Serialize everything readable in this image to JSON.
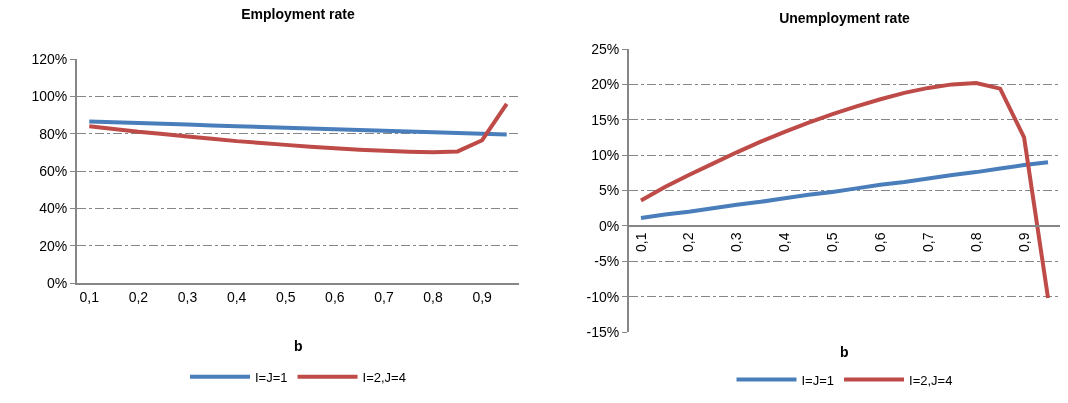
{
  "chart_data": [
    {
      "type": "line",
      "title": "Employment rate",
      "xlabel": "b",
      "categories": [
        "0,1",
        null,
        "0,2",
        null,
        "0,3",
        null,
        "0,4",
        null,
        "0,5",
        null,
        "0,6",
        null,
        "0,7",
        null,
        "0,8",
        null,
        "0,9",
        null
      ],
      "series": [
        {
          "name": "I=J=1",
          "color": "#4a7ebb",
          "values": [
            86.5,
            86.1,
            85.7,
            85.3,
            84.9,
            84.4,
            84.0,
            83.6,
            83.2,
            82.8,
            82.4,
            82.0,
            81.6,
            81.2,
            80.8,
            80.4,
            80.0,
            79.6
          ]
        },
        {
          "name": "I=2,J=4",
          "color": "#be4b48",
          "values": [
            84,
            82.5,
            81,
            79.8,
            78.5,
            77.3,
            76,
            75,
            74,
            73,
            72.2,
            71.4,
            70.8,
            70.3,
            70,
            70.5,
            76.5,
            96
          ]
        }
      ],
      "ylim": [
        0,
        120
      ],
      "yticks": [
        {
          "value": 0,
          "label": "0%"
        },
        {
          "value": 20,
          "label": "20%"
        },
        {
          "value": 40,
          "label": "40%"
        },
        {
          "value": 60,
          "label": "60%"
        },
        {
          "value": 80,
          "label": "80%"
        },
        {
          "value": 100,
          "label": "100%"
        },
        {
          "value": 120,
          "label": "120%"
        }
      ],
      "grid": "y",
      "legend": "bottom",
      "marker": "none",
      "line_style": "solid"
    },
    {
      "type": "line",
      "title": "Unemployment rate",
      "xlabel": "b",
      "categories": [
        "0,1",
        null,
        "0,2",
        null,
        "0,3",
        null,
        "0,4",
        null,
        "0,5",
        null,
        "0,6",
        null,
        "0,7",
        null,
        "0,8",
        null,
        "0,9",
        null
      ],
      "series": [
        {
          "name": "I=J=1",
          "color": "#4a7ebb",
          "values": [
            1.1,
            1.6,
            2.0,
            2.5,
            3.0,
            3.4,
            3.9,
            4.4,
            4.8,
            5.3,
            5.8,
            6.2,
            6.7,
            7.2,
            7.6,
            8.1,
            8.6,
            9.0
          ]
        },
        {
          "name": "I=2,J=4",
          "color": "#be4b48",
          "values": [
            3.6,
            5.5,
            7.2,
            8.8,
            10.4,
            11.9,
            13.3,
            14.6,
            15.8,
            16.9,
            17.9,
            18.8,
            19.5,
            20.0,
            20.2,
            19.4,
            12.5,
            -10.2
          ]
        }
      ],
      "ylim": [
        -15,
        25
      ],
      "yticks": [
        {
          "value": -15,
          "label": "-15%"
        },
        {
          "value": -10,
          "label": "-10%"
        },
        {
          "value": -5,
          "label": "-5%"
        },
        {
          "value": 0,
          "label": "0%"
        },
        {
          "value": 5,
          "label": "5%"
        },
        {
          "value": 10,
          "label": "10%"
        },
        {
          "value": 15,
          "label": "15%"
        },
        {
          "value": 20,
          "label": "20%"
        },
        {
          "value": 25,
          "label": "25%"
        }
      ],
      "grid": "y",
      "legend": "bottom",
      "marker": "none",
      "line_style": "solid"
    }
  ]
}
